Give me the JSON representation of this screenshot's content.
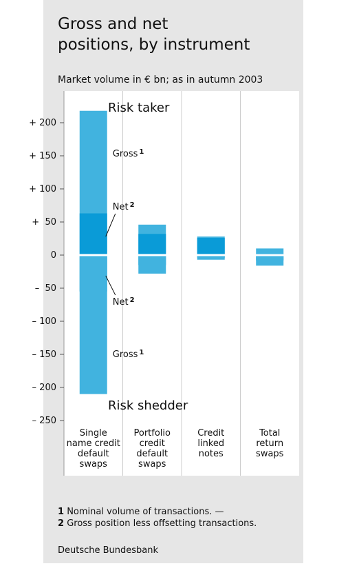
{
  "chart_data": {
    "type": "bar",
    "title": [
      "Gross and net",
      "positions, by instrument"
    ],
    "subtitle": "Market volume in € bn; as in autumn 2003",
    "categories": [
      [
        "Single",
        "name credit",
        "default",
        "swaps"
      ],
      [
        "Portfolio",
        "credit",
        "default",
        "swaps"
      ],
      [
        "Credit",
        "linked",
        "notes"
      ],
      [
        "Total",
        "return",
        "swaps"
      ]
    ],
    "series": [
      {
        "name": "Gross",
        "note": "1",
        "color": "#41b3df",
        "values": [
          218,
          46,
          28,
          10
        ]
      },
      {
        "name": "Net",
        "note": "2",
        "color": "#0a9bd7",
        "values": [
          63,
          32,
          26,
          2
        ]
      },
      {
        "name": "Net",
        "note": "2",
        "color": "#0a9bd7",
        "values": [
          -55,
          -15,
          -4,
          -8
        ]
      },
      {
        "name": "Gross",
        "note": "1",
        "color": "#41b3df",
        "values": [
          -210,
          -28,
          -7,
          -16
        ]
      }
    ],
    "annotations": [
      "Risk taker",
      "Risk shedder"
    ],
    "ylim": [
      -250,
      250
    ],
    "yticks": [
      {
        "value": 200,
        "label": "+ 200"
      },
      {
        "value": 150,
        "label": "+ 150"
      },
      {
        "value": 100,
        "label": "+ 100"
      },
      {
        "value": 50,
        "label": "+  50"
      },
      0,
      {
        "value": -50,
        "label": "–  50"
      },
      {
        "value": -100,
        "label": "– 100"
      },
      {
        "value": -150,
        "label": "– 150"
      },
      {
        "value": -200,
        "label": "– 200"
      },
      {
        "value": -250,
        "label": "– 250"
      }
    ],
    "footnotes": [
      {
        "number": "1",
        "text": "Nominal volume of transactions. —"
      },
      {
        "number": "2",
        "text": "Gross position less offsetting transactions."
      }
    ],
    "source": "Deutsche Bundesbank"
  }
}
